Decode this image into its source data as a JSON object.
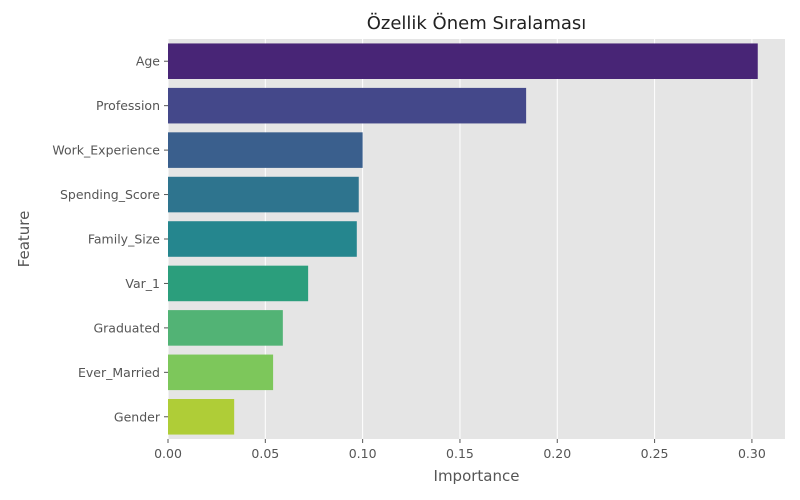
{
  "chart_data": {
    "type": "bar",
    "orientation": "horizontal",
    "title": "Özellik Önem Sıralaması",
    "xlabel": "Importance",
    "ylabel": "Feature",
    "xlim": [
      0,
      0.317
    ],
    "xticks": [
      "0.00",
      "0.05",
      "0.10",
      "0.15",
      "0.20",
      "0.25",
      "0.30"
    ],
    "grid": true,
    "categories": [
      "Age",
      "Profession",
      "Work_Experience",
      "Spending_Score",
      "Family_Size",
      "Var_1",
      "Graduated",
      "Ever_Married",
      "Gender"
    ],
    "values": [
      0.303,
      0.184,
      0.1,
      0.098,
      0.097,
      0.072,
      0.059,
      0.054,
      0.034
    ],
    "colors": [
      "#482576",
      "#44488a",
      "#3a5f8d",
      "#2e748e",
      "#25868e",
      "#2b9e7c",
      "#52b375",
      "#7dc75b",
      "#afcd37"
    ],
    "background_color": "#e5e5e5",
    "grid_color": "#ffffff"
  }
}
